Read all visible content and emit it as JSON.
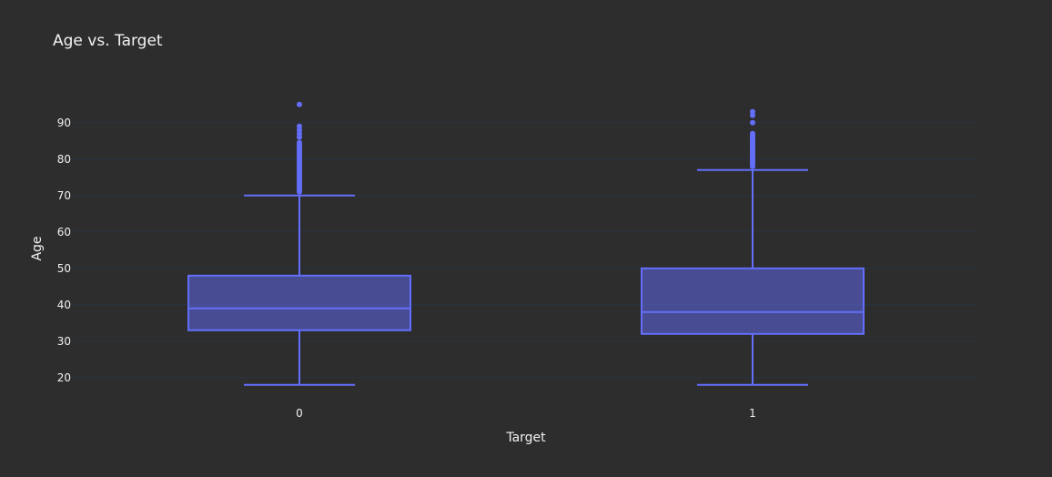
{
  "chart_data": {
    "type": "box",
    "title": "Age vs. Target",
    "xlabel": "Target",
    "ylabel": "Age",
    "categories": [
      "0",
      "1"
    ],
    "ylim": [
      13.7,
      98.7
    ],
    "yticks": [
      20,
      30,
      40,
      50,
      60,
      70,
      80,
      90
    ],
    "grid": true,
    "color": "#636efa",
    "box_fill": "rgba(99,110,250,0.5)",
    "background": "#2d2d2d",
    "boxes": [
      {
        "category": "0",
        "lower_whisker": 18,
        "q1": 33,
        "median": 39,
        "q3": 48,
        "upper_whisker": 70,
        "outliers": [
          71,
          71.5,
          72,
          72.5,
          73,
          73.5,
          74,
          74.5,
          75,
          75.5,
          76,
          76.5,
          77,
          77.5,
          78,
          78.5,
          79,
          79.5,
          80,
          80.5,
          81,
          81.5,
          82,
          82.5,
          83,
          83.5,
          84,
          84.5,
          86,
          87,
          88,
          89,
          95
        ]
      },
      {
        "category": "1",
        "lower_whisker": 18,
        "q1": 32,
        "median": 38,
        "q3": 50,
        "upper_whisker": 77,
        "outliers": [
          78,
          78.5,
          79,
          79.5,
          80,
          80.5,
          81,
          81.5,
          82,
          82.5,
          83,
          83.5,
          84,
          84.5,
          85,
          85.5,
          86,
          86.5,
          87,
          90,
          92,
          93
        ]
      }
    ]
  }
}
